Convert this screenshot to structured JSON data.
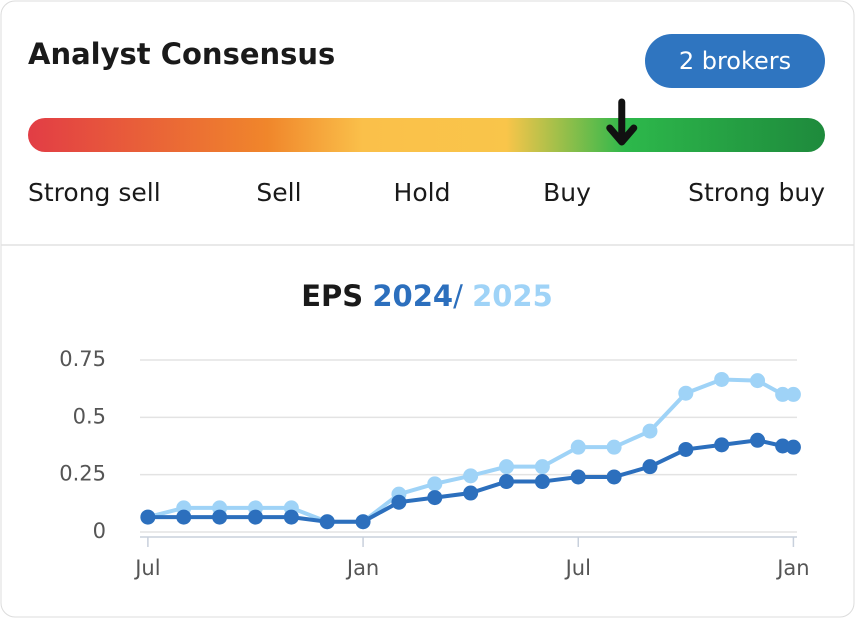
{
  "header": {
    "title": "Analyst Consensus",
    "badge": "2 brokers"
  },
  "consensus": {
    "labels": [
      "Strong sell",
      "Sell",
      "Hold",
      "Buy",
      "Strong buy"
    ],
    "range": [
      1,
      5
    ],
    "value": 3.98
  },
  "chart_data": {
    "type": "line",
    "title": "EPS",
    "separator": "/",
    "x": [
      0,
      1,
      2,
      3,
      4,
      5,
      6,
      7,
      8,
      9,
      10,
      11,
      12,
      13,
      14,
      15,
      16,
      17,
      17.7,
      18
    ],
    "series": [
      {
        "name": "2024",
        "color": "#2c6fbd",
        "values": [
          0.065,
          0.065,
          0.065,
          0.065,
          0.065,
          0.045,
          0.045,
          0.13,
          0.15,
          0.17,
          0.22,
          0.22,
          0.24,
          0.24,
          0.285,
          0.36,
          0.38,
          0.4,
          0.375,
          0.37
        ]
      },
      {
        "name": "2025",
        "color": "#9fd3f7",
        "values": [
          0.065,
          0.105,
          0.105,
          0.105,
          0.105,
          0.045,
          0.045,
          0.165,
          0.21,
          0.245,
          0.285,
          0.285,
          0.37,
          0.37,
          0.44,
          0.605,
          0.665,
          0.66,
          0.6,
          0.6
        ]
      }
    ],
    "xlim": [
      -0.22,
      18.1
    ],
    "xticks": [
      {
        "value": 0,
        "label": "Jul"
      },
      {
        "value": 6,
        "label": "Jan"
      },
      {
        "value": 12,
        "label": "Jul"
      },
      {
        "value": 18,
        "label": "Jan"
      }
    ],
    "ylim": [
      -0.02,
      0.78
    ],
    "yticks": [
      0,
      0.25,
      0.5,
      0.75
    ],
    "grid": true
  }
}
